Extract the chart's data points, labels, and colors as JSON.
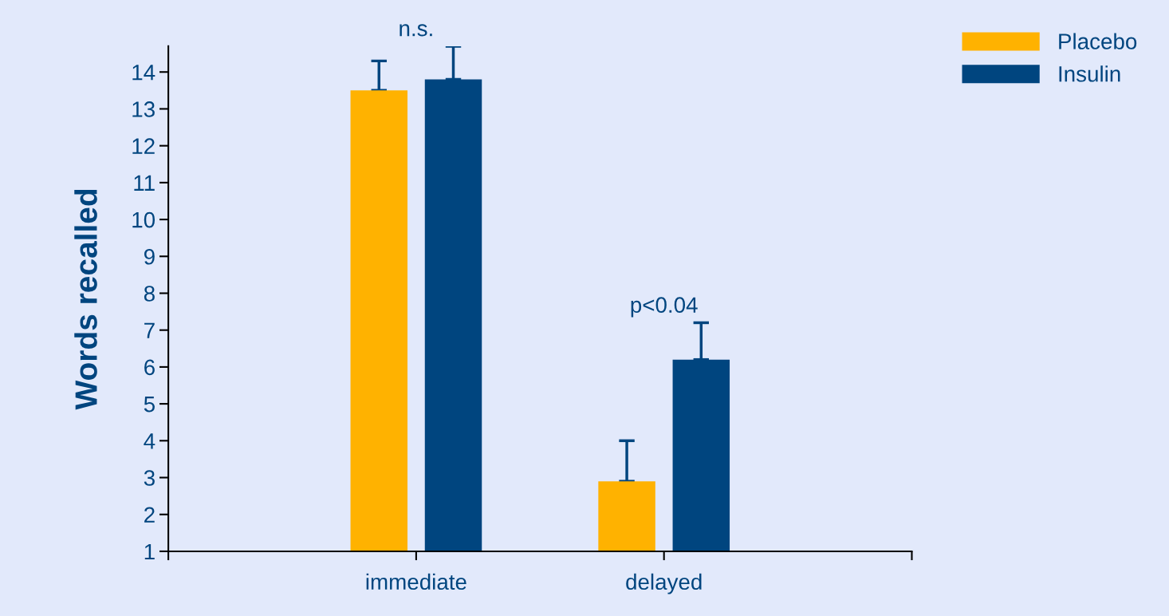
{
  "chart_data": {
    "type": "bar",
    "ylabel": "Words recalled",
    "categories": [
      null,
      "immediate",
      "delayed",
      null
    ],
    "series": [
      {
        "name": "Placebo",
        "color": "#ffb200",
        "values": [
          null,
          13.5,
          2.9,
          null
        ],
        "errors": [
          null,
          [
            13.5,
            14.3
          ],
          [
            2.9,
            4.0
          ],
          null
        ]
      },
      {
        "name": "Insulin",
        "color": "#00457f",
        "values": [
          null,
          13.8,
          6.2,
          null
        ],
        "errors": [
          null,
          [
            13.8,
            14.7
          ],
          [
            6.2,
            7.2
          ],
          null
        ]
      }
    ],
    "ylim": [
      1,
      14.7
    ],
    "yticks": [
      1,
      2,
      3,
      4,
      5,
      6,
      7,
      8,
      9,
      10,
      11,
      12,
      13,
      14
    ],
    "annotations": [
      "n.s.",
      "p<0.04"
    ],
    "legend": "top right",
    "grid": false
  }
}
